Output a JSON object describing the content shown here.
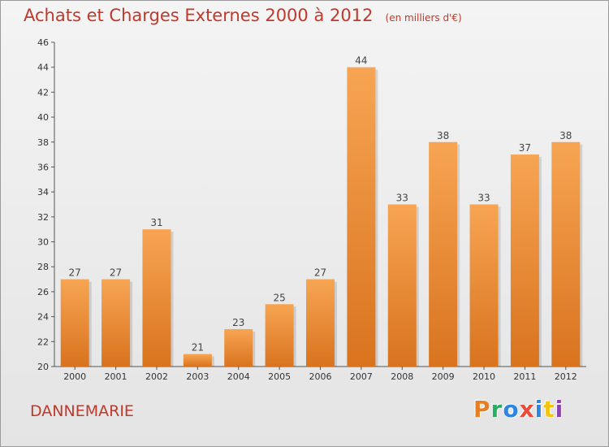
{
  "header": {
    "title": "Achats et Charges Externes 2000 à 2012",
    "subtitle": "(en milliers d'€)"
  },
  "footer": {
    "town": "DANNEMARIE",
    "logo": "Proxiti"
  },
  "colors": {
    "title": "#c0392b",
    "bar_light": "#f7a553",
    "bar_dark": "#d9731e",
    "logo_letters": [
      "#e67e22",
      "#27ae60",
      "#2e86de",
      "#e74c3c",
      "#2e86de",
      "#f1c40f",
      "#8e44ad"
    ]
  },
  "chart_data": {
    "type": "bar",
    "title": "Achats et Charges Externes 2000 à 2012",
    "subtitle": "(en milliers d'€)",
    "categories": [
      "2000",
      "2001",
      "2002",
      "2003",
      "2004",
      "2005",
      "2006",
      "2007",
      "2008",
      "2009",
      "2010",
      "2011",
      "2012"
    ],
    "values": [
      27,
      27,
      31,
      21,
      23,
      25,
      27,
      44,
      33,
      38,
      33,
      37,
      38
    ],
    "xlabel": "",
    "ylabel": "",
    "ylim": [
      20,
      46
    ],
    "yticks": [
      20,
      22,
      24,
      26,
      28,
      30,
      32,
      34,
      36,
      38,
      40,
      42,
      44,
      46
    ],
    "grid": false,
    "legend": "none"
  }
}
